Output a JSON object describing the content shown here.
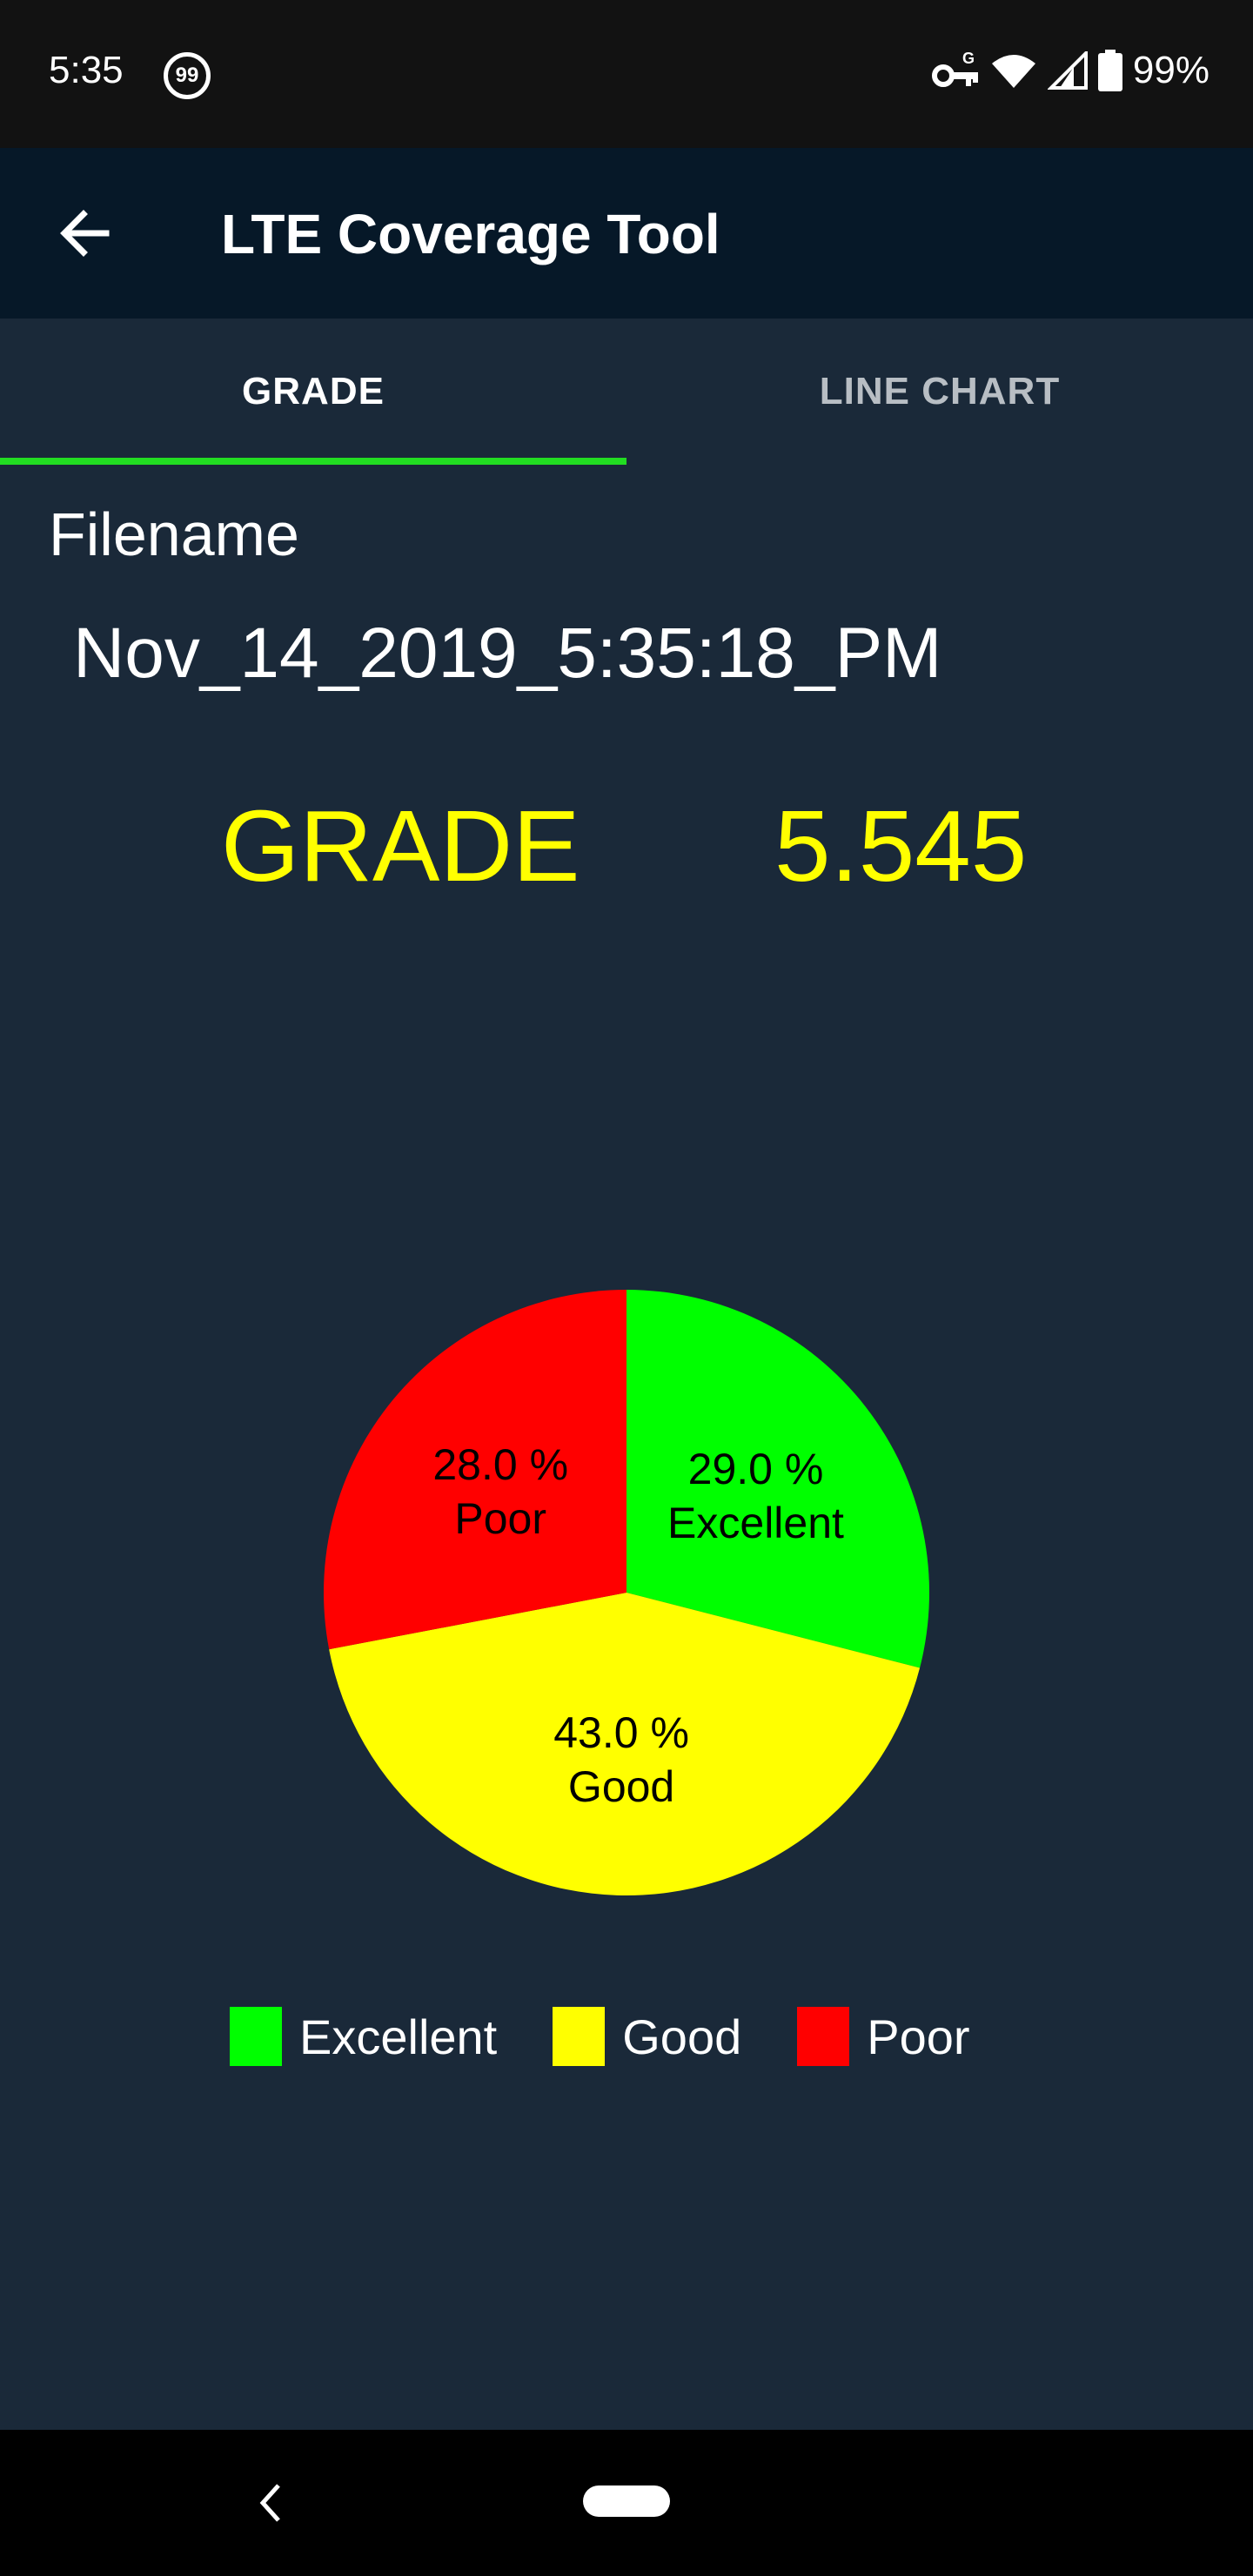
{
  "status_bar": {
    "time": "5:35",
    "notification_badge": "99",
    "battery": "99%",
    "icons": [
      "vpn-key-icon",
      "wifi-icon",
      "cell-signal-icon",
      "battery-icon"
    ]
  },
  "app_bar": {
    "title": "LTE Coverage Tool",
    "back_icon": "arrow-left-icon"
  },
  "tabs": [
    {
      "label": "GRADE",
      "selected": true
    },
    {
      "label": "LINE CHART",
      "selected": false
    }
  ],
  "filename": {
    "label": "Filename",
    "value": "Nov_14_2019_5:35:18_PM"
  },
  "grade": {
    "label": "GRADE",
    "value": "5.545"
  },
  "colors": {
    "excellent": "#00ff00",
    "good": "#ffff00",
    "poor": "#ff0000",
    "accent": "#22dd22",
    "grade_text": "#ffff00"
  },
  "chart_data": {
    "type": "pie",
    "slices": [
      {
        "label": "Excellent",
        "value": 29.0,
        "text": "29.0 %",
        "color": "#00ff00"
      },
      {
        "label": "Good",
        "value": 43.0,
        "text": "43.0 %",
        "color": "#ffff00"
      },
      {
        "label": "Poor",
        "value": 28.0,
        "text": "28.0 %",
        "color": "#ff0000"
      }
    ],
    "legend": {
      "placement": "bottom",
      "entries": [
        "Excellent",
        "Good",
        "Poor"
      ]
    }
  },
  "nav_bar": {
    "icons": [
      "nav-back-icon",
      "nav-home-pill"
    ]
  }
}
